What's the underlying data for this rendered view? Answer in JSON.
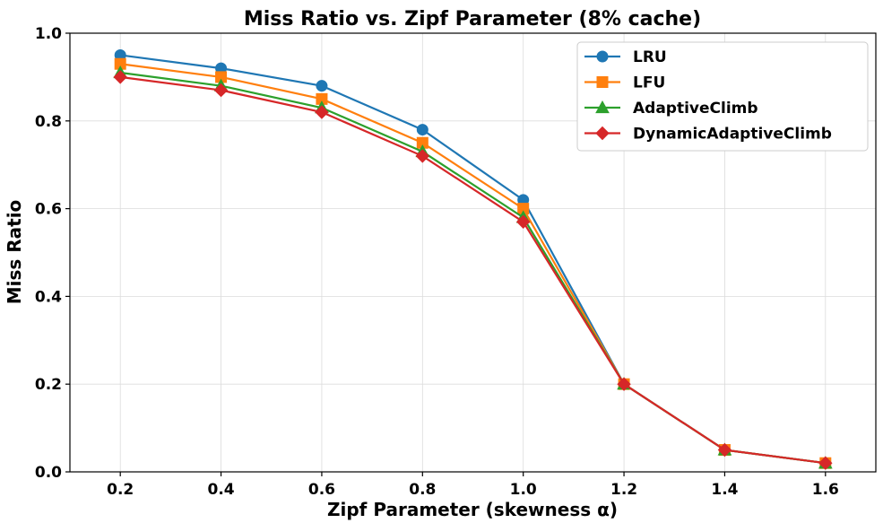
{
  "chart_data": {
    "type": "line",
    "title": "Miss Ratio vs. Zipf Parameter (8% cache)",
    "xlabel": "Zipf Parameter (skewness α)",
    "ylabel": "Miss Ratio",
    "x": [
      0.2,
      0.4,
      0.6,
      0.8,
      1.0,
      1.2,
      1.4,
      1.6
    ],
    "xtick_labels": [
      "0.2",
      "0.4",
      "0.6",
      "0.8",
      "1.0",
      "1.2",
      "1.4",
      "1.6"
    ],
    "yticks": [
      0.0,
      0.2,
      0.4,
      0.6,
      0.8,
      1.0
    ],
    "ytick_labels": [
      "0.0",
      "0.2",
      "0.4",
      "0.6",
      "0.8",
      "1.0"
    ],
    "xlim": [
      0.1,
      1.7
    ],
    "ylim": [
      0.0,
      1.0
    ],
    "grid": true,
    "legend_position": "top-right",
    "series": [
      {
        "name": "LRU",
        "color": "#1f77b4",
        "marker": "circle",
        "values": [
          0.95,
          0.92,
          0.88,
          0.78,
          0.62,
          0.2,
          0.05,
          0.02
        ]
      },
      {
        "name": "LFU",
        "color": "#ff7f0e",
        "marker": "square",
        "values": [
          0.93,
          0.9,
          0.85,
          0.75,
          0.6,
          0.2,
          0.05,
          0.02
        ]
      },
      {
        "name": "AdaptiveClimb",
        "color": "#2ca02c",
        "marker": "triangle",
        "values": [
          0.91,
          0.88,
          0.83,
          0.73,
          0.58,
          0.2,
          0.05,
          0.02
        ]
      },
      {
        "name": "DynamicAdaptiveClimb",
        "color": "#d62728",
        "marker": "diamond",
        "values": [
          0.9,
          0.87,
          0.82,
          0.72,
          0.57,
          0.2,
          0.05,
          0.02
        ]
      }
    ]
  }
}
